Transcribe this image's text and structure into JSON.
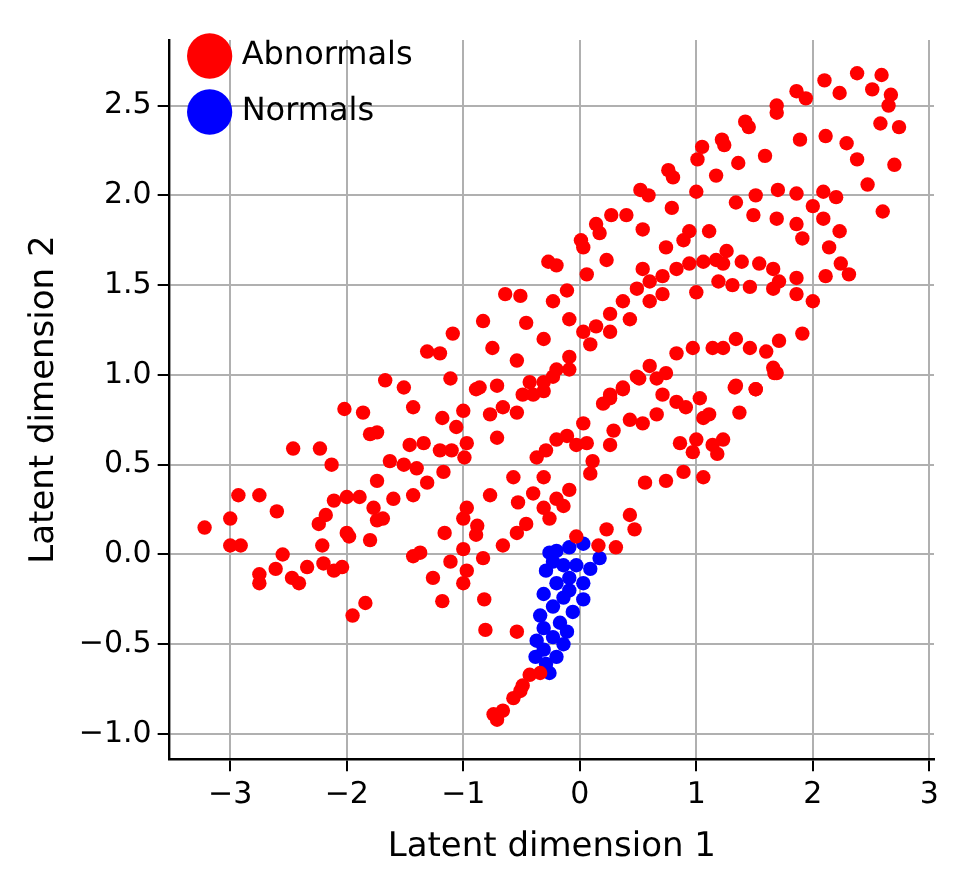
{
  "chart_data": {
    "type": "scatter",
    "xlabel": "Latent dimension 1",
    "ylabel": "Latent dimension 2",
    "xlim": [
      -3.52,
      3.04
    ],
    "ylim": [
      -1.14,
      2.865
    ],
    "xticks": [
      {
        "value": -3,
        "label": "−3"
      },
      {
        "value": -2,
        "label": "−2"
      },
      {
        "value": -1,
        "label": "−1"
      },
      {
        "value": 0,
        "label": "0"
      },
      {
        "value": 1,
        "label": "1"
      },
      {
        "value": 2,
        "label": "2"
      },
      {
        "value": 3,
        "label": "3"
      }
    ],
    "yticks": [
      {
        "value": -1,
        "label": "−1.0"
      },
      {
        "value": -0.5,
        "label": "−0.5"
      },
      {
        "value": 0,
        "label": "0.0"
      },
      {
        "value": 0.5,
        "label": "0.5"
      },
      {
        "value": 1,
        "label": "1.0"
      },
      {
        "value": 1.5,
        "label": "1.5"
      },
      {
        "value": 2,
        "label": "2.0"
      },
      {
        "value": 2.5,
        "label": "2.5"
      }
    ],
    "grid": true,
    "legend": "top left",
    "marker": "circle",
    "series": [
      {
        "name": "Abnormals",
        "color": "#ff0000",
        "x": [
          2.38,
          2.59,
          2.51,
          2.67,
          2.65,
          2.74,
          2.58,
          2.7,
          2.47,
          2.6,
          2.1,
          2.23,
          1.86,
          1.94,
          1.69,
          1.69,
          1.42,
          1.45,
          1.89,
          2.11,
          2.29,
          2.38,
          1.22,
          1.24,
          1.05,
          1.01,
          1.59,
          1.36,
          0.76,
          0.8,
          1.17,
          1,
          0.52,
          0.59,
          0.79,
          0.27,
          0.4,
          0.14,
          0.17,
          0.54,
          0.01,
          0.03,
          0.23,
          -0.27,
          -0.2,
          0.06,
          -0.11,
          -0.64,
          -0.51,
          -0.23,
          -0.83,
          -0.46,
          -1.09,
          -1.31,
          -1.2,
          -0.75,
          -0.31,
          -0.54,
          -1.67,
          -1.51,
          -1.11,
          -0.86,
          -0.71,
          -0.09,
          0.03,
          0.14,
          0.26,
          0.37,
          0.49,
          0.6,
          0.71,
          0.83,
          0.94,
          1.06,
          1.17,
          1.23,
          0.6,
          0.43,
          0.26,
          0.09,
          -0.09,
          -0.2,
          -0.31,
          -0.4,
          0.71,
          0.54,
          0.74,
          0.89,
          1.11,
          0.94,
          1.26,
          1.34,
          1.51,
          1.7,
          1.86,
          2.09,
          2.2,
          1.49,
          1.69,
          1.86,
          2,
          2.09,
          2.23,
          1.91,
          2.14,
          2.24,
          2.11,
          2.31,
          1.39,
          1.54,
          1.66,
          1.71,
          1.86,
          1.66,
          1.86,
          2,
          1.31,
          1.46,
          1.19,
          1,
          0.83,
          0.97,
          1.14,
          1.23,
          1.34,
          1.46,
          1.6,
          1.71,
          1.91,
          1.66,
          1.69,
          0.6,
          0.49,
          0.37,
          0.26,
          1.34,
          1.51,
          -2.02,
          -1.86,
          -1.43,
          -1.8,
          -1.74,
          -2.46,
          -2.23,
          -2.13,
          -2.93,
          -2.75,
          -2.6,
          -3.22,
          -3,
          -3,
          -2.91,
          -2.55,
          -2.61,
          -2.75,
          -2.75,
          -2.47,
          -2.41,
          -2.34,
          -2.2,
          -2.11,
          -2.04,
          -2.21,
          -2,
          -1.98,
          -1.8,
          -2.24,
          -2.18,
          -2.11,
          -2,
          -1.89,
          -1.77,
          -1.74,
          -1.69,
          -1.74,
          -1.6,
          -1.63,
          -1.51,
          -1.46,
          -1.4,
          -1.31,
          -1.43,
          -1.34,
          -1.2,
          -1.17,
          -1.1,
          -0.99,
          -0.97,
          -1.06,
          -1.18,
          -1,
          -0.89,
          -0.77,
          -0.66,
          -0.54,
          -0.71,
          -0.49,
          -0.43,
          -0.31,
          -0.23,
          -0.09,
          -1.43,
          -1.37,
          -1.11,
          -1.26,
          -1.18,
          -1.95,
          -1.84,
          -1,
          -1,
          -0.97,
          -1,
          -0.97,
          -1.16,
          -0.89,
          -0.88,
          -0.83,
          -0.77,
          -0.82,
          -0.81,
          -0.54,
          -0.57,
          -0.66,
          -0.54,
          -0.46,
          -0.53,
          -0.4,
          -0.37,
          -0.29,
          -0.2,
          -0.11,
          0.03,
          -0.03,
          0.06,
          0.11,
          0.09,
          -0.09,
          -0.2,
          -0.31,
          -0.31,
          -0.26,
          -0.14,
          -0.03,
          0.23,
          0.16,
          0.31,
          0.43,
          0.47,
          0.2,
          0.26,
          0.37,
          0.51,
          0.43,
          0.29,
          0.26,
          0.54,
          0.66,
          0.71,
          0.66,
          0.74,
          0.83,
          0.91,
          1.03,
          1.11,
          1.06,
          0.86,
          1,
          0.97,
          1.14,
          1.23,
          1.18,
          0.56,
          0.74,
          0.89,
          1.06,
          1.37,
          1.33,
          1.51,
          1.67,
          -0.71,
          -0.66,
          -0.57,
          -0.49,
          -0.43,
          -0.34,
          -0.74,
          -0.51
        ],
        "values": [
          2.68,
          2.67,
          2.59,
          2.56,
          2.5,
          2.38,
          2.4,
          2.17,
          2.06,
          1.91,
          2.64,
          2.57,
          2.58,
          2.54,
          2.5,
          2.46,
          2.41,
          2.38,
          2.31,
          2.33,
          2.29,
          2.2,
          2.31,
          2.28,
          2.27,
          2.2,
          2.22,
          2.18,
          2.14,
          2.1,
          2.11,
          2.02,
          2.03,
          2,
          1.93,
          1.89,
          1.89,
          1.84,
          1.79,
          1.81,
          1.75,
          1.71,
          1.64,
          1.63,
          1.61,
          1.56,
          1.47,
          1.45,
          1.44,
          1.41,
          1.3,
          1.29,
          1.23,
          1.13,
          1.12,
          1.15,
          1.2,
          1.08,
          0.97,
          0.93,
          0.98,
          0.93,
          0.94,
          1.31,
          1.24,
          1.27,
          1.34,
          1.41,
          1.48,
          1.52,
          1.55,
          1.59,
          1.62,
          1.63,
          1.64,
          1.62,
          1.41,
          1.31,
          1.24,
          1.17,
          1.1,
          1.03,
          0.96,
          0.89,
          1.45,
          1.59,
          1.71,
          1.75,
          1.8,
          1.8,
          1.69,
          1.96,
          2,
          2.03,
          2.01,
          2.02,
          1.99,
          1.89,
          1.87,
          1.84,
          1.94,
          1.87,
          1.8,
          1.76,
          1.71,
          1.62,
          1.55,
          1.56,
          1.63,
          1.62,
          1.59,
          1.52,
          1.54,
          1.48,
          1.45,
          1.41,
          1.5,
          1.49,
          1.52,
          1.46,
          1.12,
          1.15,
          1.15,
          1.15,
          1.2,
          1.15,
          1.13,
          1.19,
          1.23,
          1.04,
          1.01,
          1.05,
          0.99,
          0.92,
          0.87,
          0.94,
          0.92,
          0.81,
          0.79,
          0.82,
          0.67,
          0.68,
          0.59,
          0.59,
          0.5,
          0.33,
          0.33,
          0.24,
          0.15,
          0.2,
          0.05,
          0.05,
          0,
          -0.08,
          -0.11,
          -0.16,
          -0.13,
          -0.16,
          -0.07,
          -0.05,
          -0.09,
          -0.07,
          0.05,
          0.12,
          0.1,
          0.08,
          0.17,
          0.22,
          0.3,
          0.32,
          0.32,
          0.26,
          0.19,
          0.2,
          0.41,
          0.31,
          0.52,
          0.5,
          0.61,
          0.48,
          0.4,
          0.33,
          0.62,
          0.58,
          0.46,
          0.58,
          0.54,
          0.62,
          0.71,
          0.76,
          0.8,
          0.92,
          0.78,
          0.82,
          0.79,
          0.65,
          0.89,
          0.96,
          0.91,
          0.99,
          1.03,
          -0.01,
          0.01,
          -0.04,
          -0.13,
          -0.26,
          -0.34,
          -0.27,
          0.03,
          -0.16,
          -0.09,
          0.2,
          0.26,
          0.12,
          0.11,
          0.16,
          -0.02,
          0.33,
          -0.25,
          -0.42,
          -0.43,
          0.43,
          0.05,
          0.12,
          0.17,
          0.29,
          0.34,
          0.54,
          0.58,
          0.64,
          0.66,
          0.73,
          0.61,
          0.62,
          0.52,
          0.45,
          0.36,
          0.31,
          0.26,
          0.43,
          0.2,
          0.27,
          0.1,
          0.14,
          0.05,
          0.04,
          0.22,
          0.14,
          0.84,
          0.89,
          0.93,
          0.98,
          0.75,
          0.69,
          0.61,
          0.73,
          0.78,
          0.89,
          0.98,
          1.01,
          0.85,
          0.82,
          0.87,
          0.78,
          0.76,
          0.62,
          0.64,
          0.57,
          0.61,
          0.64,
          0.56,
          0.4,
          0.41,
          0.46,
          0.43,
          0.79,
          0.93,
          0.92,
          1.01,
          -0.92,
          -0.87,
          -0.8,
          -0.73,
          -0.67,
          -0.66,
          -0.89,
          -0.76
        ]
      },
      {
        "name": "Normals",
        "color": "#0000ff",
        "x": [
          0.03,
          -0.09,
          -0.2,
          -0.26,
          0.17,
          0.09,
          -0.03,
          -0.14,
          -0.29,
          -0.09,
          -0.2,
          0.03,
          -0.31,
          -0.14,
          0.03,
          -0.23,
          -0.06,
          -0.34,
          -0.17,
          -0.31,
          -0.11,
          -0.23,
          -0.37,
          -0.14,
          -0.31,
          -0.2,
          -0.29,
          -0.26,
          -0.38,
          -0.09,
          -0.23
        ],
        "values": [
          0.06,
          0.04,
          0.02,
          0.01,
          -0.02,
          -0.08,
          -0.06,
          -0.06,
          -0.09,
          -0.13,
          -0.16,
          -0.16,
          -0.22,
          -0.24,
          -0.25,
          -0.29,
          -0.32,
          -0.34,
          -0.38,
          -0.41,
          -0.43,
          -0.46,
          -0.48,
          -0.5,
          -0.53,
          -0.57,
          -0.61,
          -0.66,
          -0.57,
          -0.2,
          -0.04
        ]
      }
    ]
  }
}
